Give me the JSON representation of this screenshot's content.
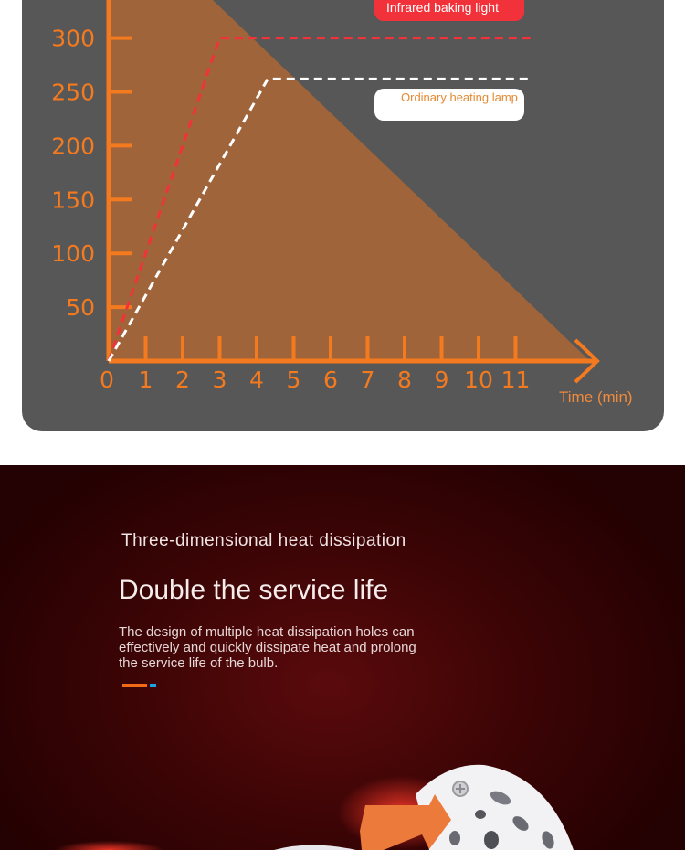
{
  "chart_data": {
    "type": "line",
    "x_ticks": [
      "0",
      "1",
      "2",
      "3",
      "4",
      "5",
      "6",
      "7",
      "8",
      "9",
      "10",
      "11"
    ],
    "y_ticks": [
      "50",
      "100",
      "150",
      "200",
      "250",
      "300"
    ],
    "y_tick_values": [
      50,
      100,
      150,
      200,
      250,
      300
    ],
    "xunit": "Time (min)",
    "xlim": [
      0,
      11.5
    ],
    "ylim": [
      0,
      325
    ],
    "series": [
      {
        "name": "Infrared baking light",
        "color": "#f2323a",
        "points": [
          [
            0,
            0
          ],
          [
            3,
            300
          ],
          [
            11.4,
            300
          ]
        ]
      },
      {
        "name": "Ordinary heating lamp",
        "color": "#ffffff",
        "points": [
          [
            0,
            0
          ],
          [
            4.3,
            262
          ],
          [
            11.4,
            262
          ]
        ]
      }
    ],
    "background_triangle_color": "#a0643a",
    "axis_color": "#f47a1f",
    "grid": false,
    "legend_position": "top-right"
  },
  "promo": {
    "subtitle": "Three-dimensional heat dissipation",
    "title": "Double the service life",
    "body": "The design of multiple heat dissipation holes can effectively and quickly dissipate heat and prolong the service life of the bulb.",
    "accent_colors": [
      "#f06a18",
      "#1aa3e8"
    ]
  }
}
